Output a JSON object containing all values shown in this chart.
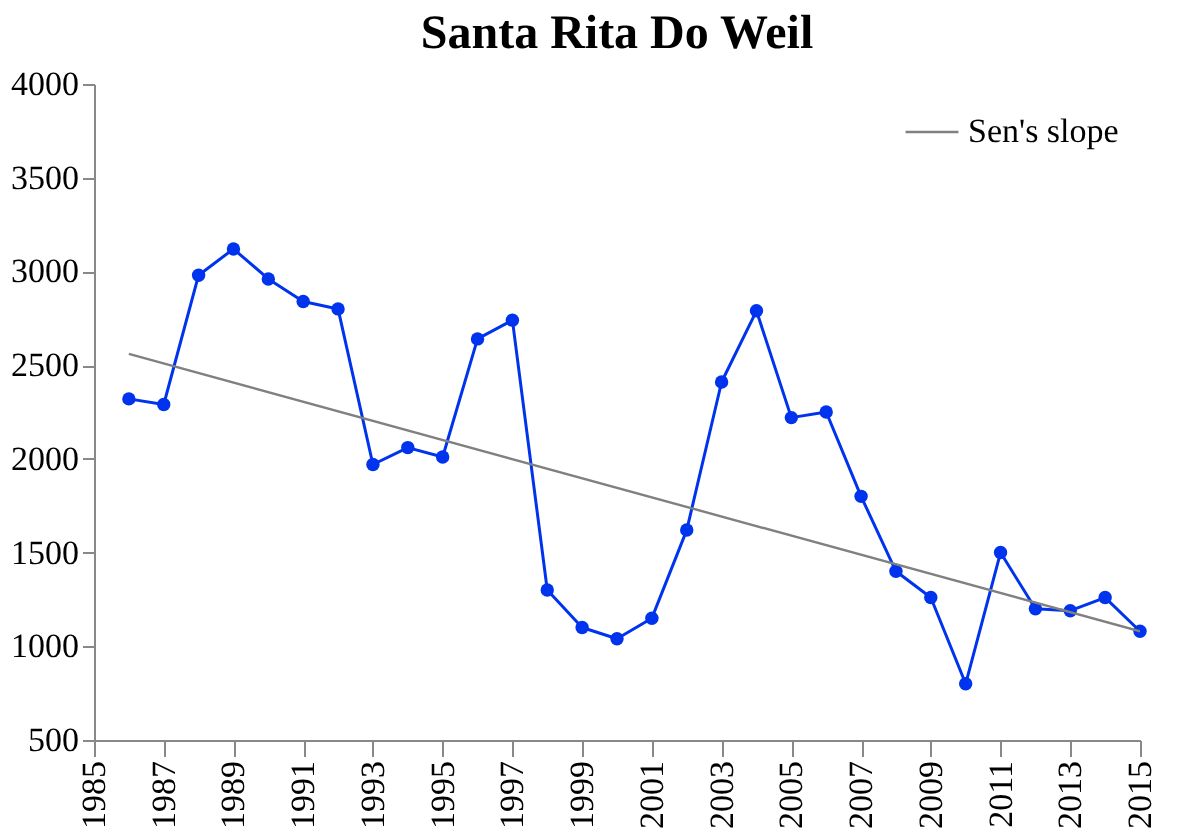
{
  "chart_data": {
    "type": "line",
    "title": "Santa Rita Do Weil",
    "series": [
      {
        "color": "#0033ee",
        "marker": "circle",
        "x": [
          1986,
          1987,
          1988,
          1989,
          1990,
          1991,
          1992,
          1993,
          1994,
          1995,
          1996,
          1997,
          1998,
          1999,
          2000,
          2001,
          2002,
          2003,
          2004,
          2005,
          2006,
          2007,
          2008,
          2009,
          2010,
          2011,
          2012,
          2013,
          2014,
          2015
        ],
        "values": [
          2320,
          2290,
          2980,
          3120,
          2960,
          2840,
          2800,
          1970,
          2060,
          2010,
          2640,
          2740,
          1300,
          1100,
          1040,
          1150,
          1620,
          2410,
          2790,
          2220,
          2250,
          1800,
          1400,
          1260,
          800,
          1500,
          1200,
          1190,
          1260,
          1080
        ]
      },
      {
        "name": "Sen's slope",
        "color": "#808080",
        "type": "line",
        "marker": "none",
        "x": [
          1986,
          2015
        ],
        "values": [
          2560,
          1080
        ]
      }
    ],
    "xlim": [
      1985,
      2015
    ],
    "xticks": [
      1985,
      1987,
      1989,
      1991,
      1993,
      1995,
      1997,
      1999,
      2001,
      2003,
      2005,
      2007,
      2009,
      2011,
      2013,
      2015
    ],
    "ylim": [
      500,
      4000
    ],
    "yticks": [
      500,
      1000,
      1500,
      2000,
      2500,
      3000,
      3500,
      4000
    ],
    "grid": false,
    "legend": "top right",
    "line_style": "solid"
  }
}
